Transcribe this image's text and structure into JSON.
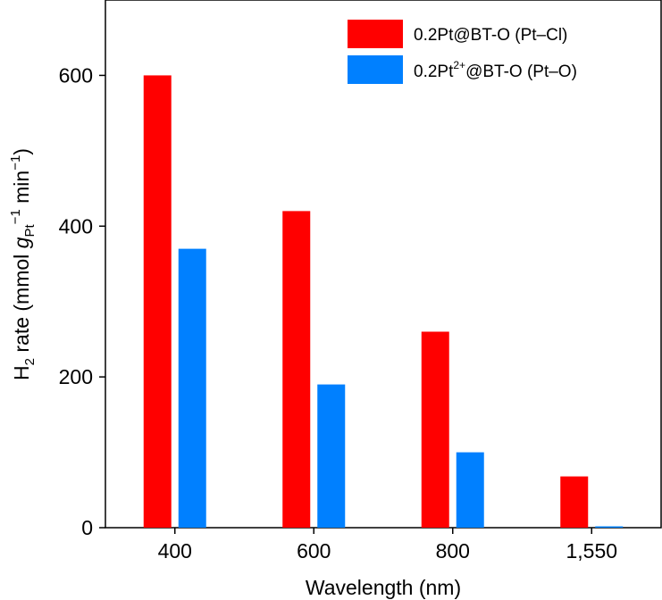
{
  "chart_data": {
    "type": "bar",
    "title": "",
    "categories": [
      "400",
      "600",
      "800",
      "1,550"
    ],
    "series": [
      {
        "name": "0.2Pt@BT-O (Pt–Cl)",
        "values": [
          600,
          420,
          260,
          68
        ],
        "color": "#ff0000"
      },
      {
        "name": "0.2Pt2+@BT-O (Pt–O)",
        "values": [
          370,
          190,
          100,
          0
        ],
        "color": "#0080ff"
      }
    ],
    "xlabel": "Wavelength (nm)",
    "ylabel": "H2 rate (mmol gPt−1 min−1)",
    "ylim": [
      0,
      700
    ],
    "yticks": [
      0,
      200,
      400,
      600
    ],
    "grid": false,
    "legend_position": "top-right"
  },
  "legend": {
    "series1": {
      "main": "0.2Pt@BT-O (Pt–Cl)"
    },
    "series2": {
      "prefix": "0.2Pt",
      "sup": "2+",
      "suffix": "@BT-O (Pt–O)"
    }
  },
  "axes": {
    "x_title": "Wavelength (nm)",
    "y_title": {
      "h": "H",
      "h_sub": "2",
      "mid": " rate (mmol ",
      "g": "g",
      "g_sub": "Pt",
      "g_sup": "−1",
      "tail": " min",
      "tail_sup": "−1",
      "close": ")"
    }
  }
}
